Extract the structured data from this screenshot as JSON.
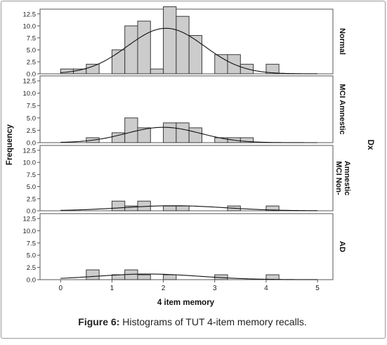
{
  "caption": {
    "label": "Figure 6:",
    "text": " Histograms of TUT 4-item memory recalls."
  },
  "chart_data": {
    "type": "bar",
    "subtype": "faceted histogram with normal curves",
    "xlabel": "4 item memory",
    "ylabel": "Frequency",
    "facet_label": "Dx",
    "xlim": [
      -0.4,
      5.3
    ],
    "x_ticks": [
      "0",
      "1",
      "2",
      "3",
      "4",
      "5"
    ],
    "ylim": [
      0,
      13.5
    ],
    "y_ticks": [
      "0.0",
      "2.5",
      "5.0",
      "7.5",
      "10.0",
      "12.5"
    ],
    "bin_width": 0.25,
    "bar_color": "#cccccc",
    "curve_color": "#111111",
    "panels": [
      {
        "name": "Normal",
        "bins": [
          {
            "x": 0.0,
            "count": 1
          },
          {
            "x": 0.25,
            "count": 1
          },
          {
            "x": 0.5,
            "count": 2
          },
          {
            "x": 1.0,
            "count": 5
          },
          {
            "x": 1.25,
            "count": 10
          },
          {
            "x": 1.5,
            "count": 11
          },
          {
            "x": 1.75,
            "count": 1
          },
          {
            "x": 2.0,
            "count": 14
          },
          {
            "x": 2.25,
            "count": 12
          },
          {
            "x": 2.5,
            "count": 8
          },
          {
            "x": 3.0,
            "count": 4
          },
          {
            "x": 3.25,
            "count": 4
          },
          {
            "x": 3.5,
            "count": 2
          },
          {
            "x": 4.0,
            "count": 2
          }
        ],
        "curve": {
          "mean": 2.05,
          "peak": 9.5,
          "sd": 0.75
        }
      },
      {
        "name": "MCI Amnestic",
        "bins": [
          {
            "x": 0.5,
            "count": 1
          },
          {
            "x": 1.0,
            "count": 2
          },
          {
            "x": 1.25,
            "count": 5
          },
          {
            "x": 1.5,
            "count": 3
          },
          {
            "x": 2.0,
            "count": 4
          },
          {
            "x": 2.25,
            "count": 4
          },
          {
            "x": 2.5,
            "count": 3
          },
          {
            "x": 3.0,
            "count": 1
          },
          {
            "x": 3.25,
            "count": 1
          },
          {
            "x": 3.5,
            "count": 1
          }
        ],
        "curve": {
          "mean": 2.0,
          "peak": 3.1,
          "sd": 0.72
        }
      },
      {
        "name": "MCI Non-Amnestic",
        "name_lines": [
          "MCI Non-",
          "Amnestic"
        ],
        "bins": [
          {
            "x": 1.0,
            "count": 2
          },
          {
            "x": 1.25,
            "count": 1
          },
          {
            "x": 1.5,
            "count": 2
          },
          {
            "x": 2.0,
            "count": 1
          },
          {
            "x": 2.25,
            "count": 1
          },
          {
            "x": 3.25,
            "count": 1
          },
          {
            "x": 4.0,
            "count": 1
          }
        ],
        "curve": {
          "mean": 2.2,
          "peak": 1.05,
          "sd": 1.0
        }
      },
      {
        "name": "AD",
        "bins": [
          {
            "x": 0.5,
            "count": 2
          },
          {
            "x": 1.0,
            "count": 1
          },
          {
            "x": 1.25,
            "count": 2
          },
          {
            "x": 1.5,
            "count": 1
          },
          {
            "x": 2.0,
            "count": 1
          },
          {
            "x": 3.0,
            "count": 1
          },
          {
            "x": 4.0,
            "count": 1
          }
        ],
        "curve": {
          "mean": 1.7,
          "peak": 1.15,
          "sd": 1.0
        }
      }
    ]
  }
}
